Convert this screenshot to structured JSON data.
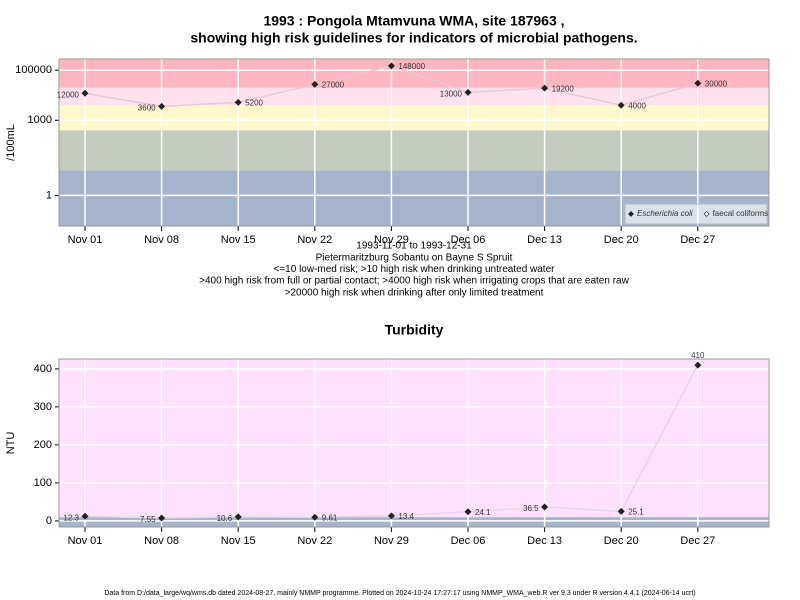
{
  "chart_data": [
    {
      "type": "line",
      "title": [
        "1993 : Pongola Mtamvuna WMA, site 187963 ,",
        "showing high risk guidelines for indicators of microbial pathogens."
      ],
      "notes": [
        "1993-11-01 to 1993-12-31",
        "Pietermaritzburg Sobantu on Bayne S Spruit",
        "<=10 low-med risk; >10 high risk when drinking untreated water",
        ">400 high risk from full or partial contact; >4000 high risk when irrigating crops that are eaten raw",
        ">20000 high risk when drinking after only limited treatment"
      ],
      "y_label": "/100mL",
      "categories": [
        "Nov 01",
        "Nov 08",
        "Nov 15",
        "Nov 22",
        "Nov 29",
        "Dec 06",
        "Dec 13",
        "Dec 20",
        "Dec 27"
      ],
      "series": [
        {
          "name": "Escherichia coli",
          "color": "#e6c8d8",
          "values": [
            12000,
            3600,
            5200,
            27000,
            148000,
            13000,
            19200,
            4000,
            30000
          ]
        },
        {
          "name": "faecal coliforms",
          "color": "#e6c8d8",
          "values": [
            null,
            null,
            null,
            null,
            null,
            null,
            null,
            null,
            null
          ]
        }
      ],
      "log_y": true,
      "ylim": [
        0.06,
        280000
      ],
      "yticks": [
        1,
        1000,
        100000
      ],
      "band_thresholds": [
        10,
        400,
        4000,
        20000
      ],
      "band_colors": [
        "#a3b4cc",
        "#c4ccbf",
        "#fff8cc",
        "#ffe0ef",
        "#ffb6c1"
      ],
      "grid": true,
      "legend": "bottom-right"
    },
    {
      "type": "line",
      "title": [
        "Turbidity"
      ],
      "y_label": "NTU",
      "categories": [
        "Nov 01",
        "Nov 08",
        "Nov 15",
        "Nov 22",
        "Nov 29",
        "Dec 06",
        "Dec 13",
        "Dec 20",
        "Dec 27"
      ],
      "series": [
        {
          "name": "Turbidity",
          "color": "#e6d8e0",
          "values": [
            12.3,
            7.55,
            10.6,
            9.61,
            13.4,
            24.1,
            36.5,
            25.1,
            410
          ]
        }
      ],
      "log_y": false,
      "ylim": [
        -16,
        426
      ],
      "yticks": [
        0,
        100,
        200,
        300,
        400
      ],
      "band_thresholds": [
        10
      ],
      "band_colors": [
        "#a3b4cc",
        "#ffe0ff"
      ],
      "grid": true
    }
  ],
  "footer": "Data from D:/data_large/wq/wms.db dated 2024-08-27, mainly NMMP programme. Plotted on 2024-10-24 17:27:17 using NMMP_WMA_web.R ver 9.3 under R version 4.4.1 (2024-06-14 ucrt)"
}
